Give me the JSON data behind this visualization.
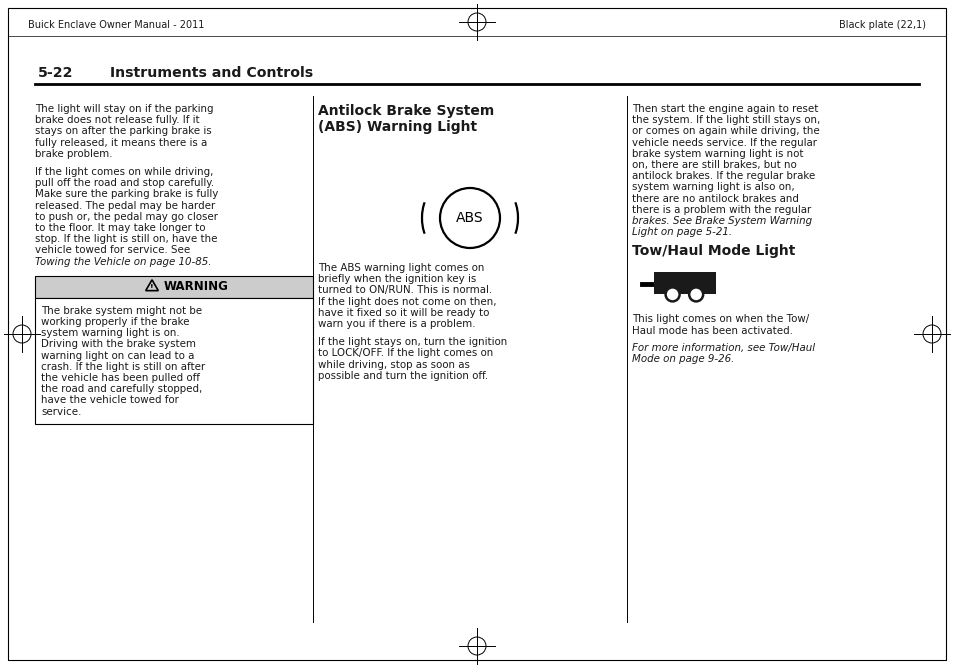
{
  "bg_color": "#ffffff",
  "page_width": 9.54,
  "page_height": 6.68,
  "header_left": "Buick Enclave Owner Manual - 2011",
  "header_right": "Black plate (22,1)",
  "section_number": "5-22",
  "section_title": "Instruments and Controls",
  "col1_para1": "The light will stay on if the parking\nbrake does not release fully. If it\nstays on after the parking brake is\nfully released, it means there is a\nbrake problem.",
  "col1_para2_normal": [
    "If the light comes on while driving,",
    "pull off the road and stop carefully.",
    "Make sure the parking brake is fully",
    "released. The pedal may be harder",
    "to push or, the pedal may go closer",
    "to the floor. It may take longer to",
    "stop. If the light is still on, have the",
    "vehicle towed for service. See"
  ],
  "col1_para2_italic": "Towing the Vehicle on page 10-85.",
  "warning_title": "WARNING",
  "warning_text_lines": [
    "The brake system might not be",
    "working properly if the brake",
    "system warning light is on.",
    "Driving with the brake system",
    "warning light on can lead to a",
    "crash. If the light is still on after",
    "the vehicle has been pulled off",
    "the road and carefully stopped,",
    "have the vehicle towed for",
    "service."
  ],
  "col2_head": "Antilock Brake System\n(ABS) Warning Light",
  "col2_text1_lines": [
    "The ABS warning light comes on",
    "briefly when the ignition key is",
    "turned to ON/RUN. This is normal.",
    "If the light does not come on then,",
    "have it fixed so it will be ready to",
    "warn you if there is a problem."
  ],
  "col2_text2_lines": [
    "If the light stays on, turn the ignition",
    "to LOCK/OFF. If the light comes on",
    "while driving, stop as soon as",
    "possible and turn the ignition off."
  ],
  "col3_text1_lines": [
    "Then start the engine again to reset",
    "the system. If the light still stays on,",
    "or comes on again while driving, the",
    "vehicle needs service. If the regular",
    "brake system warning light is not",
    "on, there are still brakes, but no",
    "antilock brakes. If the regular brake",
    "system warning light is also on,",
    "there are no antilock brakes and",
    "there is a problem with the regular",
    "brakes. See Brake System Warning",
    "Light on page 5-21."
  ],
  "col3_italic_lines": [
    "brakes. See Brake System Warning",
    "Light on page 5-21."
  ],
  "col3_head2": "Tow/Haul Mode Light",
  "col3_tow1_lines": [
    "This light comes on when the Tow/",
    "Haul mode has been activated."
  ],
  "col3_tow2_lines": [
    "For more information, see Tow/Haul",
    "Mode on page 9-26."
  ],
  "col3_tow2_italic": true
}
